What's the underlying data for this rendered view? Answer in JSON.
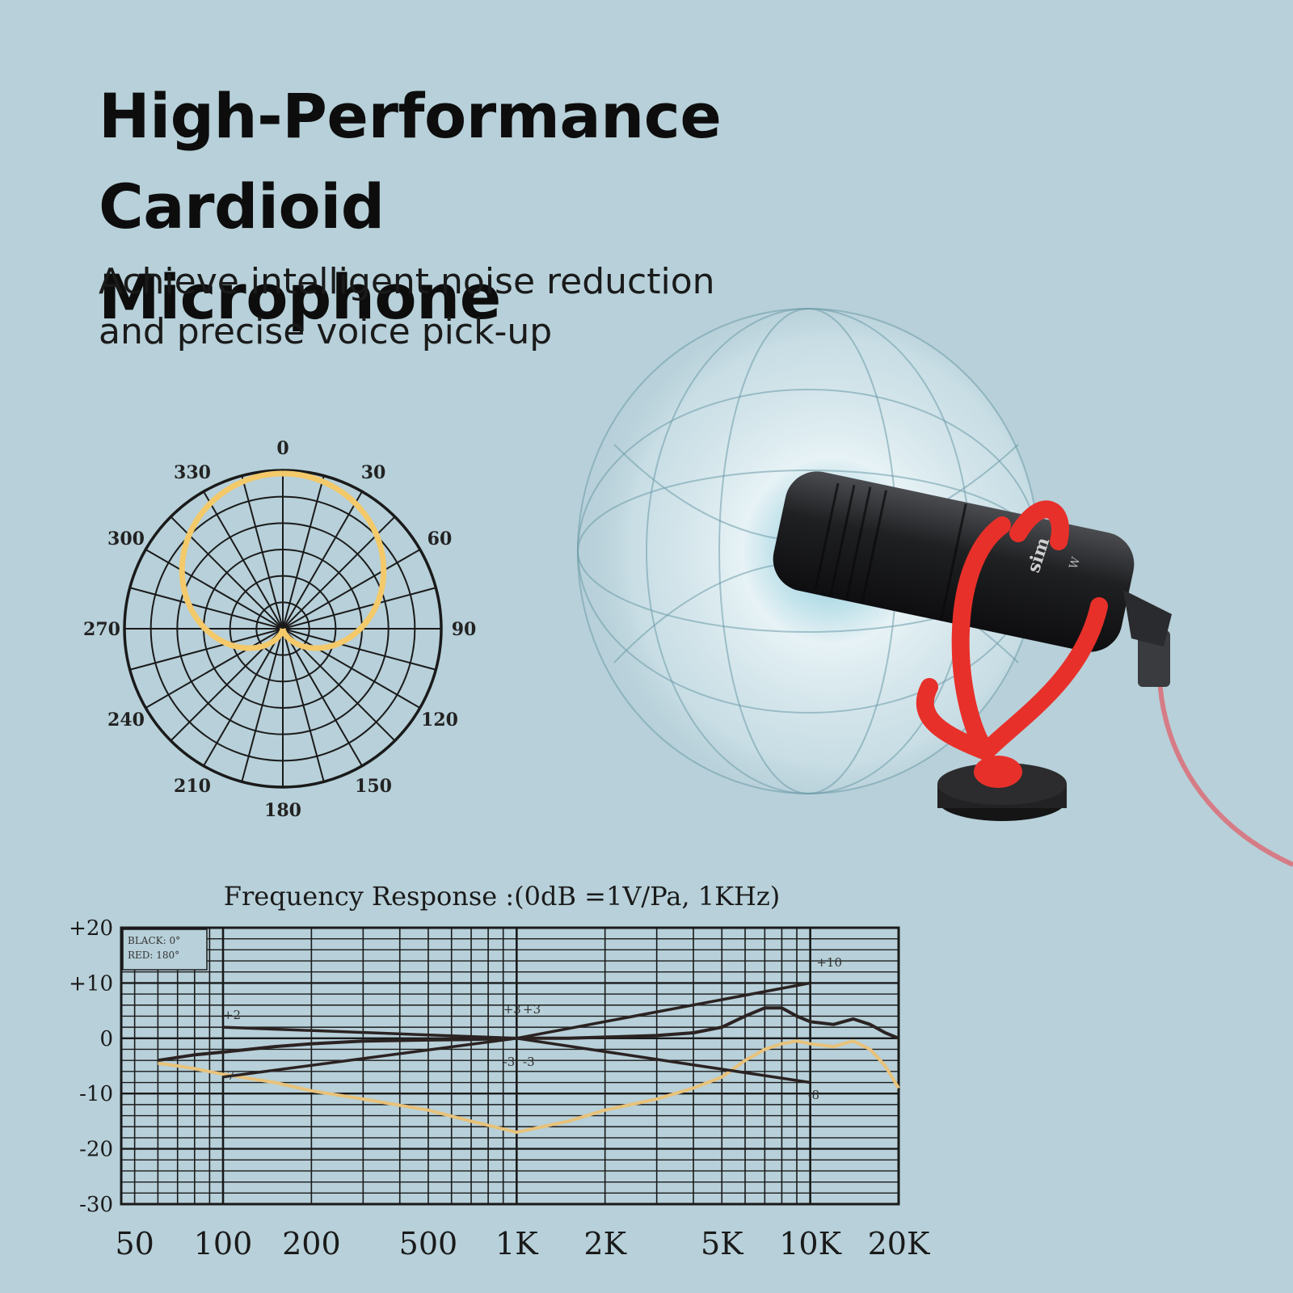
{
  "headline": {
    "line1": "High-Performance Cardioid",
    "line2": "Microphone"
  },
  "subheadline": {
    "line1": "Achieve intelligent noise reduction",
    "line2": "and precise voice pick-up"
  },
  "colors": {
    "background": "#b7d0d9",
    "polar_curve": "#f3c96a",
    "grid": "#1a1a1a",
    "black_curve": "#2b2222",
    "red_curve": "#e8c27a",
    "mic_red": "#e8302a",
    "mic_body": "#1f2022"
  },
  "product": {
    "brand_text": "sim",
    "model_text": "W",
    "icon": "microphone-with-pickup-sphere"
  },
  "chart_data": [
    {
      "type": "polar",
      "title": "",
      "angle_labels": [
        "0",
        "30",
        "60",
        "90",
        "120",
        "150",
        "180",
        "210",
        "240",
        "270",
        "300",
        "330"
      ],
      "angles_deg": [
        0,
        30,
        60,
        90,
        120,
        150,
        180,
        210,
        240,
        270,
        300,
        330
      ],
      "rings": 6,
      "radial_spokes_deg": 15,
      "series": [
        {
          "pattern": "cardioid",
          "angles_deg": [
            0,
            30,
            60,
            90,
            120,
            150,
            165,
            180,
            195,
            210,
            240,
            270,
            300,
            330
          ],
          "r": [
            1.0,
            0.93,
            0.75,
            0.5,
            0.25,
            0.07,
            0.02,
            0.0,
            0.02,
            0.07,
            0.25,
            0.5,
            0.75,
            0.93
          ]
        }
      ]
    },
    {
      "type": "line",
      "title": "Frequency  Response :(0dB =1V/Pa, 1KHz)",
      "xscale": "log",
      "x_tick_labels": [
        "50",
        "100",
        "200",
        "500",
        "1K",
        "2K",
        "5K",
        "10K",
        "20K"
      ],
      "x_ticks": [
        50,
        100,
        200,
        500,
        1000,
        2000,
        5000,
        10000,
        20000
      ],
      "xlim": [
        45,
        20000
      ],
      "y_tick_labels": [
        "+20",
        "+10",
        "0",
        "-10",
        "-20",
        "-30"
      ],
      "y_ticks": [
        20,
        10,
        0,
        -10,
        -20,
        -30
      ],
      "ylim": [
        -30,
        20
      ],
      "legend": {
        "position": "top-left",
        "lines": [
          "BLACK: 0°",
          "RED: 180°"
        ]
      },
      "guide_labels": [
        {
          "text": "+2",
          "x": 100,
          "y": 3.5
        },
        {
          "text": "-7",
          "x": 100,
          "y": -7.5
        },
        {
          "text": "+3",
          "x": 900,
          "y": 4.5
        },
        {
          "text": "+3",
          "x": 1050,
          "y": 4.5
        },
        {
          "text": "-3",
          "x": 900,
          "y": -5
        },
        {
          "text": "-3",
          "x": 1050,
          "y": -5
        },
        {
          "text": "+10",
          "x": 10500,
          "y": 13
        },
        {
          "text": "-8",
          "x": 9800,
          "y": -11
        }
      ],
      "series": [
        {
          "name": "BLACK: 0°",
          "x": [
            60,
            80,
            100,
            150,
            200,
            300,
            500,
            700,
            1000,
            1500,
            2000,
            3000,
            4000,
            5000,
            6000,
            7000,
            8000,
            9000,
            10000,
            12000,
            14000,
            16000,
            18000,
            20000
          ],
          "y": [
            -4,
            -3,
            -2.5,
            -1.5,
            -1,
            -0.5,
            -0.3,
            -0.2,
            0,
            0,
            0.2,
            0.5,
            1,
            2,
            4,
            5.5,
            5.5,
            4,
            3,
            2.5,
            3.5,
            2.5,
            1,
            0
          ]
        },
        {
          "name": "RED: 180°",
          "x": [
            60,
            70,
            80,
            100,
            150,
            200,
            300,
            500,
            700,
            1000,
            1500,
            2000,
            3000,
            4000,
            5000,
            6000,
            7000,
            8000,
            9000,
            10000,
            12000,
            14000,
            16000,
            18000,
            20000
          ],
          "y": [
            -4.5,
            -5,
            -5.5,
            -6.5,
            -8,
            -9.5,
            -11,
            -13,
            -15,
            -17,
            -15,
            -13,
            -11,
            -9,
            -7,
            -4,
            -2,
            -1,
            -0.5,
            -1,
            -1.5,
            -0.5,
            -2,
            -5,
            -9
          ]
        },
        {
          "x": [
            100,
            1000,
            10000
          ],
          "y": [
            2,
            0,
            10
          ],
          "guide": true
        },
        {
          "x": [
            100,
            1000,
            10000
          ],
          "y": [
            -7,
            0,
            -8
          ],
          "guide": true
        }
      ]
    }
  ]
}
